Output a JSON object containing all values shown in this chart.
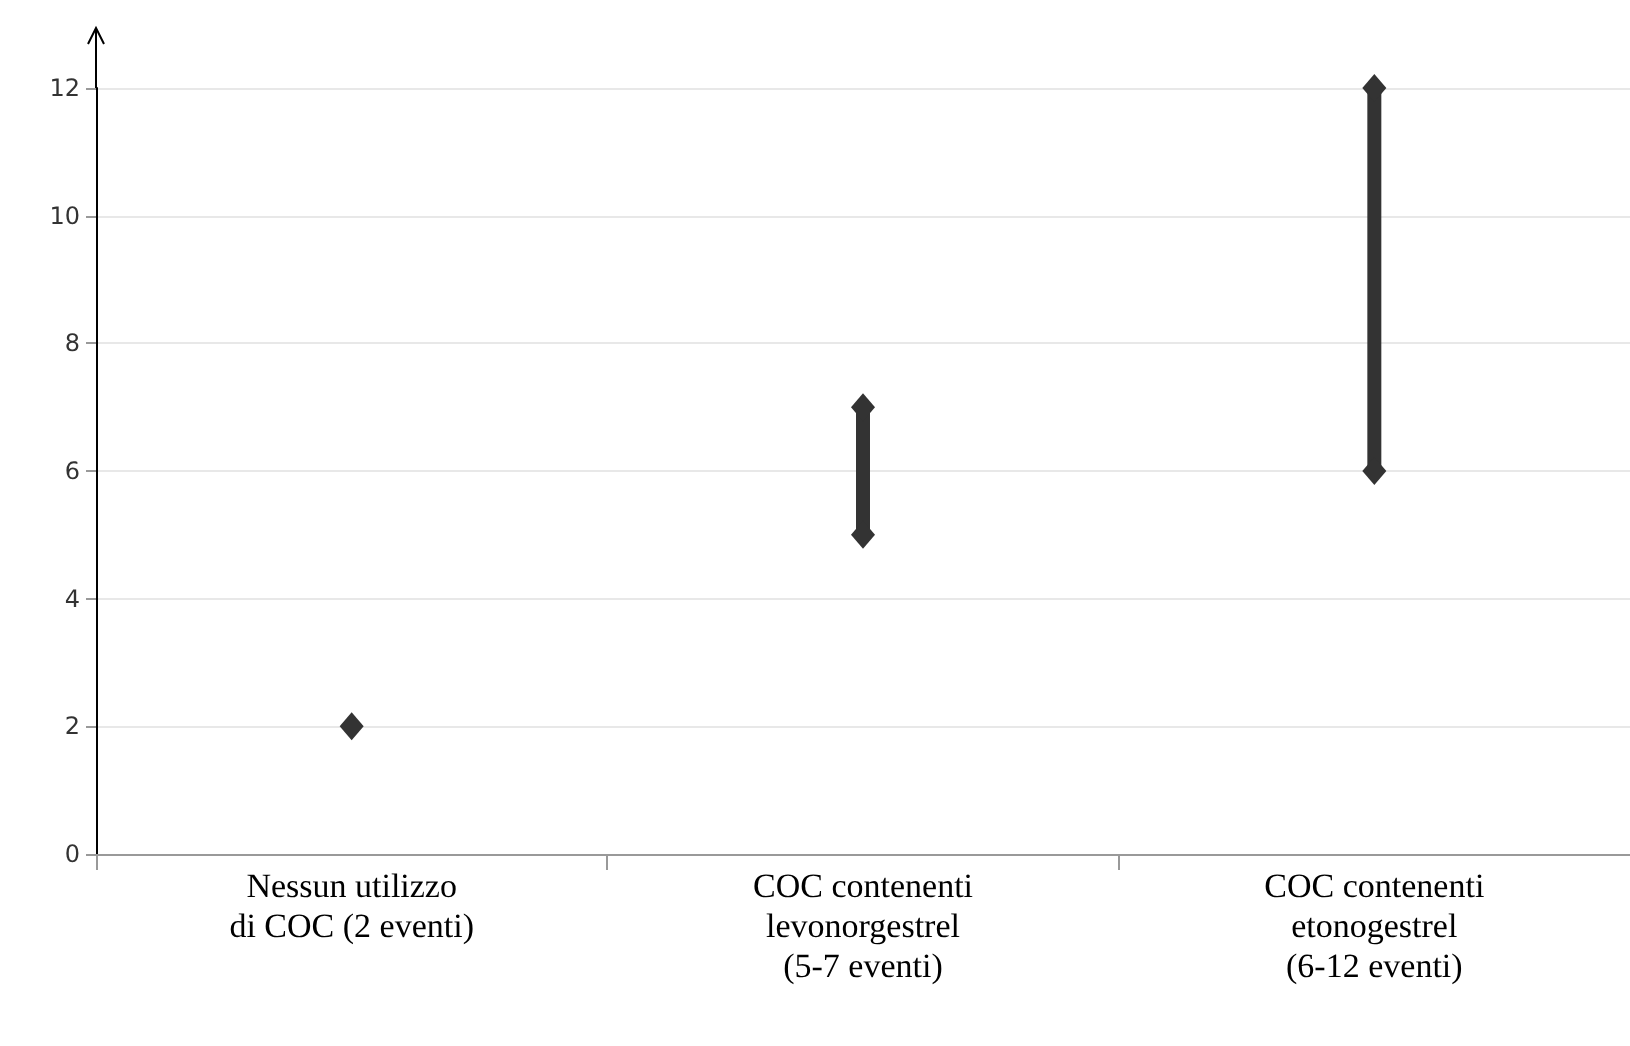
{
  "chart_data": {
    "type": "bar",
    "categories": [
      "Nessun utilizzo\ndi COC (2 eventi)",
      "COC contenenti\nlevonorgestrel\n(5-7 eventi)",
      "COC contenenti\netonogestrel\n(6-12 eventi)"
    ],
    "series": [
      {
        "color": "#333333",
        "base": [
          null,
          5,
          6
        ],
        "values": [
          null,
          2,
          6
        ]
      },
      {
        "type": "scatter",
        "color": "#333333",
        "marker": "diamond",
        "x": [
          "Nessun utilizzo\ndi COC (2 eventi)",
          "COC contenenti\nlevonorgestrel\n(5-7 eventi)",
          "COC contenenti\netonogestrel\n(6-12 eventi)"
        ],
        "values": [
          2,
          5,
          6
        ]
      },
      {
        "type": "scatter",
        "color": "#333333",
        "marker": "diamond",
        "x": [
          "Nessun utilizzo\ndi COC (2 eventi)",
          "COC contenenti\nlevonorgestrel\n(5-7 eventi)",
          "COC contenenti\netonogestrel\n(6-12 eventi)"
        ],
        "values": [
          null,
          7,
          12
        ]
      }
    ],
    "ylim": [
      0,
      12
    ],
    "yticks": [
      0,
      2,
      4,
      6,
      8,
      10,
      12
    ],
    "grid": "y"
  }
}
